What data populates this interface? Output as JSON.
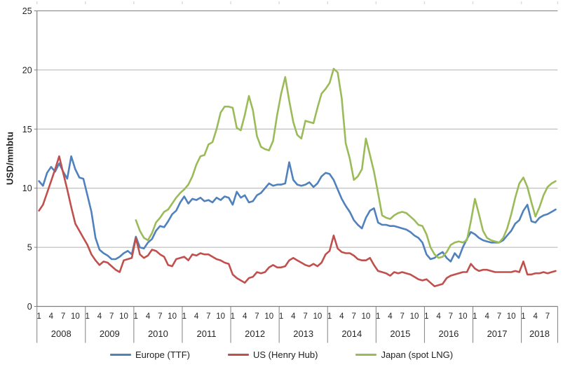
{
  "chart_data": {
    "type": "line",
    "title": "",
    "ylabel": "USD/mmbtu",
    "ylim": [
      0,
      25
    ],
    "yticks": [
      0,
      5,
      10,
      15,
      20,
      25
    ],
    "grid": true,
    "legend_position": "bottom",
    "x_month_labels": [
      "1",
      "4",
      "7",
      "10"
    ],
    "x_years": [
      "2008",
      "2009",
      "2010",
      "2011",
      "2012",
      "2013",
      "2014",
      "2015",
      "2016",
      "2017",
      "2018"
    ],
    "x_total_months": 129,
    "x_note_last_year_months": 9,
    "series": [
      {
        "name": "Europe (TTF)",
        "slug": "europe-ttf",
        "color": "#4F81BD",
        "start_index": 0,
        "values": [
          10.6,
          10.2,
          11.3,
          11.8,
          11.4,
          12.1,
          11.4,
          10.8,
          12.7,
          11.6,
          10.9,
          10.8,
          9.4,
          8.0,
          5.8,
          4.8,
          4.5,
          4.3,
          4.0,
          4.0,
          4.2,
          4.5,
          4.7,
          4.4,
          5.9,
          5.0,
          4.9,
          5.4,
          5.7,
          6.4,
          6.8,
          6.7,
          7.2,
          7.8,
          8.1,
          8.8,
          9.3,
          8.7,
          9.1,
          9.0,
          9.2,
          8.9,
          9.0,
          8.8,
          9.2,
          9.0,
          9.3,
          9.2,
          8.6,
          9.7,
          9.2,
          9.4,
          8.8,
          8.9,
          9.4,
          9.6,
          10.0,
          10.4,
          10.2,
          10.3,
          10.3,
          10.4,
          12.2,
          10.7,
          10.3,
          10.2,
          10.3,
          10.5,
          10.1,
          10.4,
          11.0,
          11.3,
          11.2,
          10.7,
          9.9,
          9.1,
          8.5,
          8.0,
          7.3,
          6.9,
          6.6,
          7.5,
          8.1,
          8.3,
          7.1,
          6.9,
          6.9,
          6.8,
          6.8,
          6.7,
          6.6,
          6.5,
          6.3,
          6.0,
          5.8,
          5.4,
          4.4,
          4.0,
          4.1,
          4.4,
          4.6,
          4.1,
          3.8,
          4.5,
          4.1,
          5.0,
          5.7,
          6.3,
          6.1,
          5.8,
          5.6,
          5.5,
          5.4,
          5.4,
          5.4,
          5.6,
          6.0,
          6.4,
          7.0,
          7.3,
          8.1,
          8.6,
          7.2,
          7.1,
          7.5,
          7.7,
          7.8,
          8.0,
          8.2
        ]
      },
      {
        "name": "US (Henry Hub)",
        "slug": "us-henry-hub",
        "color": "#C0504D",
        "start_index": 0,
        "values": [
          8.1,
          8.6,
          9.6,
          10.6,
          11.6,
          12.7,
          11.3,
          9.9,
          8.4,
          7.0,
          6.4,
          5.8,
          5.2,
          4.4,
          3.9,
          3.5,
          3.8,
          3.7,
          3.4,
          3.1,
          2.9,
          3.9,
          4.0,
          4.1,
          5.8,
          4.4,
          4.1,
          4.3,
          4.8,
          4.7,
          4.4,
          4.2,
          3.5,
          3.4,
          4.0,
          4.1,
          4.2,
          3.9,
          4.4,
          4.3,
          4.5,
          4.4,
          4.4,
          4.2,
          4.0,
          3.9,
          3.7,
          3.6,
          2.7,
          2.4,
          2.2,
          2.0,
          2.4,
          2.5,
          2.9,
          2.8,
          2.9,
          3.3,
          3.5,
          3.3,
          3.3,
          3.4,
          3.9,
          4.1,
          3.9,
          3.7,
          3.5,
          3.4,
          3.6,
          3.4,
          3.7,
          4.4,
          4.7,
          6.0,
          4.9,
          4.6,
          4.5,
          4.5,
          4.3,
          4.0,
          3.9,
          3.9,
          4.1,
          3.5,
          3.0,
          2.9,
          2.8,
          2.6,
          2.9,
          2.8,
          2.9,
          2.8,
          2.7,
          2.5,
          2.3,
          2.2,
          2.3,
          2.0,
          1.7,
          1.8,
          1.9,
          2.4,
          2.6,
          2.7,
          2.8,
          2.9,
          2.9,
          3.6,
          3.2,
          3.0,
          3.1,
          3.1,
          3.0,
          2.9,
          2.9,
          2.9,
          2.9,
          2.9,
          3.0,
          2.9,
          3.8,
          2.7,
          2.7,
          2.8,
          2.8,
          2.9,
          2.8,
          2.9,
          3.0
        ]
      },
      {
        "name": "Japan (spot LNG)",
        "slug": "japan-spot-lng",
        "color": "#9BBB59",
        "start_index": 24,
        "values": [
          7.3,
          6.4,
          5.8,
          5.6,
          6.2,
          7.1,
          7.5,
          8.0,
          8.2,
          8.7,
          9.2,
          9.6,
          9.9,
          10.3,
          11.0,
          12.0,
          12.7,
          12.8,
          13.7,
          13.9,
          15.0,
          16.4,
          16.9,
          16.9,
          16.8,
          15.1,
          14.9,
          16.2,
          17.8,
          16.6,
          14.4,
          13.5,
          13.3,
          13.2,
          14.0,
          16.2,
          18.0,
          19.4,
          17.4,
          15.6,
          14.5,
          14.2,
          15.7,
          15.6,
          15.5,
          16.8,
          18.0,
          18.4,
          18.9,
          20.1,
          19.8,
          17.6,
          13.8,
          12.5,
          10.7,
          11.0,
          11.6,
          14.2,
          12.8,
          11.4,
          9.6,
          7.7,
          7.5,
          7.4,
          7.7,
          7.9,
          8.0,
          7.9,
          7.6,
          7.3,
          6.9,
          6.8,
          6.1,
          5.0,
          4.4,
          4.1,
          4.2,
          4.6,
          5.2,
          5.4,
          5.5,
          5.4,
          5.6,
          7.2,
          9.1,
          7.8,
          6.4,
          5.8,
          5.6,
          5.5,
          5.4,
          5.8,
          6.6,
          7.8,
          9.2,
          10.4,
          10.9,
          10.1,
          8.8,
          7.6,
          8.4,
          9.4,
          10.1,
          10.4,
          10.6
        ]
      }
    ]
  }
}
